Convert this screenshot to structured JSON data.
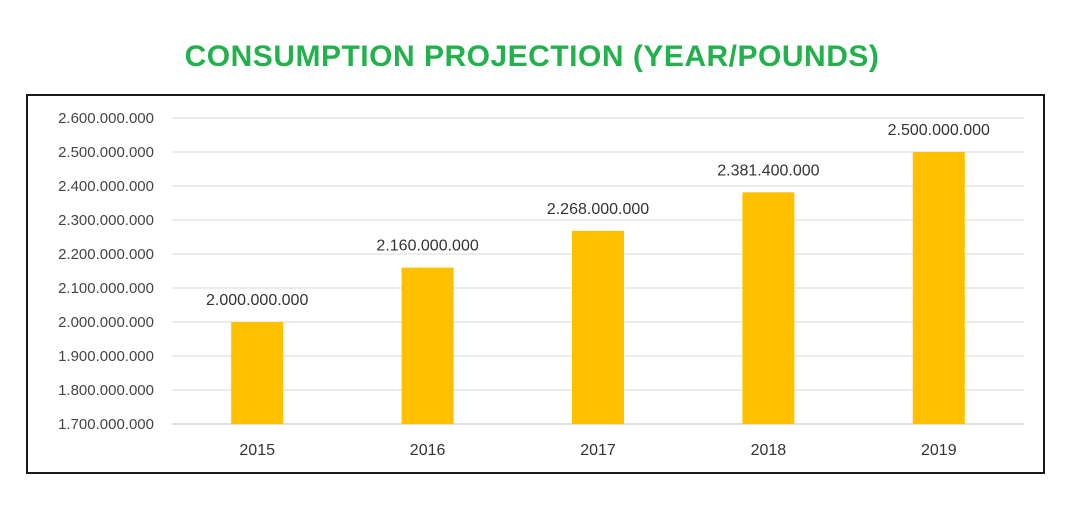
{
  "chart_data": {
    "type": "bar",
    "title": "CONSUMPTION PROJECTION (YEAR/POUNDS)",
    "xlabel": "",
    "ylabel": "",
    "categories": [
      "2015",
      "2016",
      "2017",
      "2018",
      "2019"
    ],
    "values": [
      2000000000,
      2160000000,
      2268000000,
      2381400000,
      2500000000
    ],
    "data_labels": [
      "2.000.000.000",
      "2.160.000.000",
      "2.268.000.000",
      "2.381.400.000",
      "2.500.000.000"
    ],
    "ylim": [
      1700000000,
      2600000000
    ],
    "yticks": [
      1700000000,
      1800000000,
      1900000000,
      2000000000,
      2100000000,
      2200000000,
      2300000000,
      2400000000,
      2500000000,
      2600000000
    ],
    "ytick_labels": [
      "1.700.000.000",
      "1.800.000.000",
      "1.900.000.000",
      "2.000.000.000",
      "2.100.000.000",
      "2.200.000.000",
      "2.300.000.000",
      "2.400.000.000",
      "2.500.000.000",
      "2.600.000.000"
    ],
    "grid": true,
    "legend": "none",
    "colors": {
      "bar": "#FFC000",
      "title": "#22B14C"
    }
  }
}
